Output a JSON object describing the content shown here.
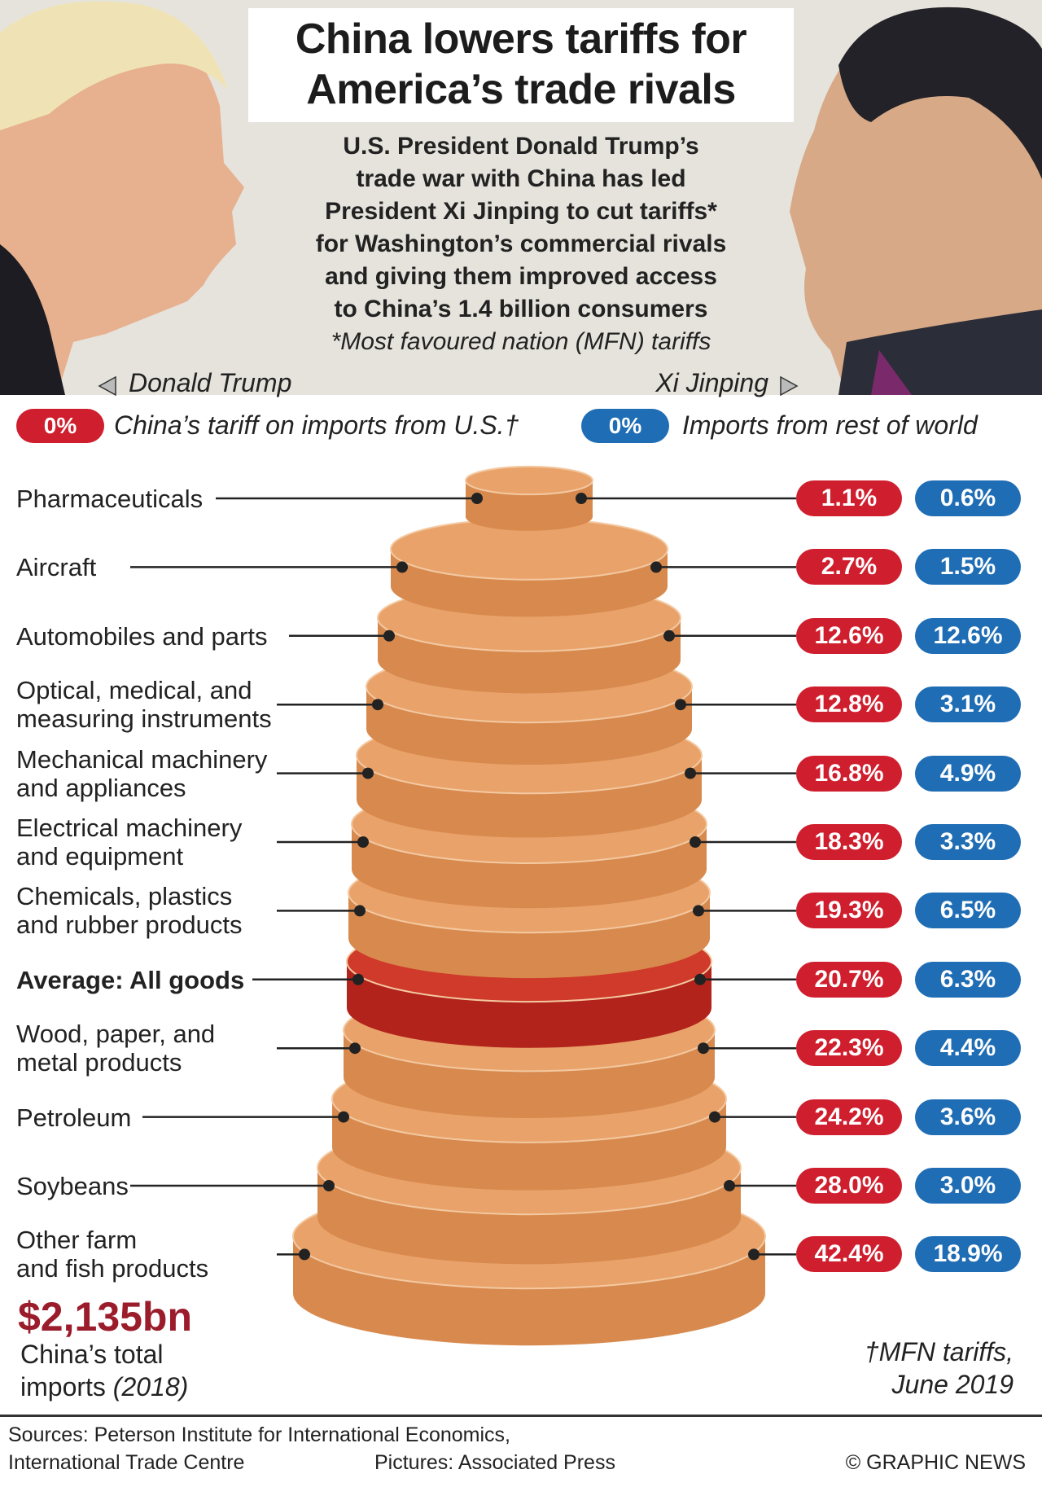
{
  "header": {
    "title_line1": "China lowers tariffs for",
    "title_line2": "America’s trade rivals",
    "intro_lines": [
      "U.S. President Donald Trump’s",
      "trade war with China has led",
      "President Xi Jinping to cut tariffs*",
      "for Washington’s commercial rivals",
      "and giving them improved access",
      "to China’s 1.4 billion consumers"
    ],
    "intro_footnote": "*Most favoured nation (MFN) tariffs"
  },
  "portraits": {
    "left_label": "Donald Trump",
    "right_label": "Xi Jinping"
  },
  "legend": {
    "us_pill": "0%",
    "us_label": "China’s tariff on imports from U.S.†",
    "world_pill": "0%",
    "world_label": "Imports from rest of world"
  },
  "chart_data": {
    "type": "table",
    "series": [
      {
        "name": "China’s tariff on imports from U.S.†",
        "color": "#cf1f2e"
      },
      {
        "name": "Imports from rest of world",
        "color": "#1f6db4"
      }
    ],
    "rows": [
      {
        "label_lines": [
          "Pharmaceuticals"
        ],
        "us": "1.1%",
        "world": "0.6%",
        "us_value": 1.1,
        "world_value": 0.6
      },
      {
        "label_lines": [
          "Aircraft"
        ],
        "us": "2.7%",
        "world": "1.5%",
        "us_value": 2.7,
        "world_value": 1.5
      },
      {
        "label_lines": [
          "Automobiles and parts"
        ],
        "us": "12.6%",
        "world": "12.6%",
        "us_value": 12.6,
        "world_value": 12.6
      },
      {
        "label_lines": [
          "Optical, medical, and",
          "measuring instruments"
        ],
        "us": "12.8%",
        "world": "3.1%",
        "us_value": 12.8,
        "world_value": 3.1
      },
      {
        "label_lines": [
          "Mechanical machinery",
          "and appliances"
        ],
        "us": "16.8%",
        "world": "4.9%",
        "us_value": 16.8,
        "world_value": 4.9
      },
      {
        "label_lines": [
          "Electrical machinery",
          "and equipment"
        ],
        "us": "18.3%",
        "world": "3.3%",
        "us_value": 18.3,
        "world_value": 3.3
      },
      {
        "label_lines": [
          "Chemicals, plastics",
          "and rubber products"
        ],
        "us": "19.3%",
        "world": "6.5%",
        "us_value": 19.3,
        "world_value": 6.5
      },
      {
        "label_lines": [
          "Average: All goods"
        ],
        "us": "20.7%",
        "world": "6.3%",
        "us_value": 20.7,
        "world_value": 6.3,
        "highlight": true
      },
      {
        "label_lines": [
          "Wood, paper, and",
          "metal products"
        ],
        "us": "22.3%",
        "world": "4.4%",
        "us_value": 22.3,
        "world_value": 4.4
      },
      {
        "label_lines": [
          "Petroleum"
        ],
        "us": "24.2%",
        "world": "3.6%",
        "us_value": 24.2,
        "world_value": 3.6
      },
      {
        "label_lines": [
          "Soybeans"
        ],
        "us": "28.0%",
        "world": "3.0%",
        "us_value": 28.0,
        "world_value": 3.0
      },
      {
        "label_lines": [
          "Other farm",
          "and fish products"
        ],
        "us": "42.4%",
        "world": "18.9%",
        "us_value": 42.4,
        "world_value": 18.9
      }
    ]
  },
  "total_imports": {
    "value": "$2,135bn",
    "line1": "China’s total",
    "line2_prefix": "imports",
    "line2_year": "(2018)"
  },
  "mfn_note": {
    "line1": "†MFN tariffs,",
    "line2": "June 2019"
  },
  "footer": {
    "sources_line1": "Sources:  Peterson Institute for International Economics,",
    "sources_line2": "International Trade Centre",
    "pictures": "Pictures: Associated Press",
    "credit": "© GRAPHIC NEWS"
  },
  "colors": {
    "disc": "#e9a36a",
    "disc_side": "#d88a4e",
    "highlight": "#cf3a2a",
    "us_red": "#cf1f2e",
    "world_blue": "#1f6db4"
  }
}
